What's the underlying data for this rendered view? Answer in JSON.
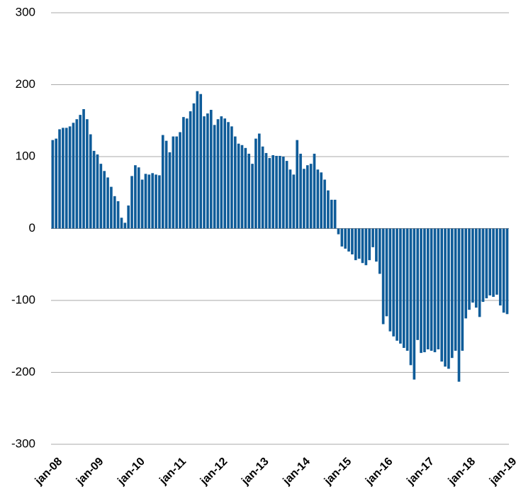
{
  "chart_data": {
    "type": "bar",
    "categories": [
      "jan-08",
      null,
      null,
      null,
      null,
      null,
      null,
      null,
      null,
      null,
      null,
      null,
      "jan-09",
      null,
      null,
      null,
      null,
      null,
      null,
      null,
      null,
      null,
      null,
      null,
      "jan-10",
      null,
      null,
      null,
      null,
      null,
      null,
      null,
      null,
      null,
      null,
      null,
      "jan-11",
      null,
      null,
      null,
      null,
      null,
      null,
      null,
      null,
      null,
      null,
      null,
      "jan-12",
      null,
      null,
      null,
      null,
      null,
      null,
      null,
      null,
      null,
      null,
      null,
      "jan-13",
      null,
      null,
      null,
      null,
      null,
      null,
      null,
      null,
      null,
      null,
      null,
      "jan-14",
      null,
      null,
      null,
      null,
      null,
      null,
      null,
      null,
      null,
      null,
      null,
      "jan-15",
      null,
      null,
      null,
      null,
      null,
      null,
      null,
      null,
      null,
      null,
      null,
      "jan-16",
      null,
      null,
      null,
      null,
      null,
      null,
      null,
      null,
      null,
      null,
      null,
      "jan-17",
      null,
      null,
      null,
      null,
      null,
      null,
      null,
      null,
      null,
      null,
      null,
      "jan-18",
      null,
      null,
      null,
      null,
      null,
      null,
      null,
      null,
      null,
      null,
      null,
      "jan-19"
    ],
    "values": [
      123,
      125,
      138,
      140,
      140,
      142,
      147,
      152,
      158,
      166,
      152,
      131,
      108,
      103,
      90,
      80,
      71,
      58,
      45,
      38,
      15,
      8,
      32,
      73,
      88,
      85,
      68,
      76,
      75,
      77,
      75,
      74,
      130,
      122,
      106,
      128,
      128,
      134,
      155,
      153,
      163,
      174,
      191,
      187,
      156,
      160,
      165,
      144,
      152,
      156,
      153,
      148,
      142,
      128,
      118,
      116,
      112,
      104,
      90,
      125,
      132,
      114,
      105,
      98,
      102,
      101,
      101,
      100,
      94,
      82,
      75,
      123,
      104,
      83,
      88,
      90,
      104,
      82,
      78,
      68,
      53,
      40,
      40,
      -8,
      -25,
      -28,
      -32,
      -36,
      -44,
      -42,
      -48,
      -51,
      -44,
      -26,
      -46,
      -63,
      -133,
      -122,
      -143,
      -150,
      -156,
      -160,
      -166,
      -170,
      -190,
      -210,
      -155,
      -173,
      -172,
      -168,
      -170,
      -172,
      -168,
      -185,
      -192,
      -195,
      -180,
      -170,
      -213,
      -170,
      -125,
      -113,
      -103,
      -110,
      -123,
      -102,
      -97,
      -93,
      -95,
      -92,
      -107,
      -117,
      -119
    ],
    "color": "#0f5c99",
    "ylim": [
      -300,
      300
    ],
    "yticks": [
      -300,
      -200,
      -100,
      0,
      100,
      200,
      300
    ],
    "grid": true
  }
}
